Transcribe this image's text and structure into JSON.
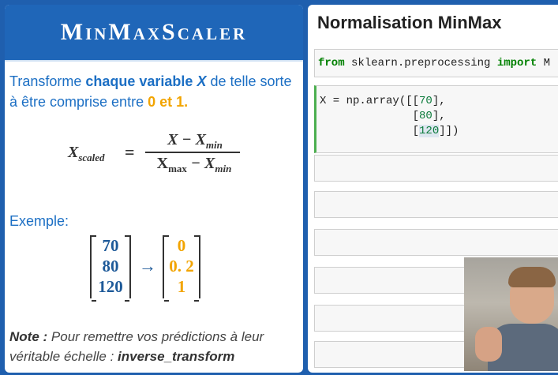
{
  "slide": {
    "banner": "MinMaxScaler",
    "intro": {
      "p1": "Transforme ",
      "b1": "chaque variable ",
      "var": "X",
      "p2": " de telle sorte à être comprise entre ",
      "b2": "0 et 1."
    },
    "formula": {
      "lhs": "X",
      "lhs_sub": "scaled",
      "num_a": "X",
      "num_b": " − X",
      "num_sub": "min",
      "den_a": "X",
      "den_a_sub": "max",
      "den_b": " − X",
      "den_b_sub": "min"
    },
    "example_label": "Exemple:",
    "matrix_in": [
      "70",
      "80",
      "120"
    ],
    "arrow": "→",
    "matrix_out": [
      "0",
      "0. 2",
      "1"
    ],
    "note": {
      "label": "Note :",
      "text": " Pour remettre vos prédictions à leur véritable échelle : ",
      "func": "inverse_transform"
    }
  },
  "notebook": {
    "title": "Normalisation MinMax",
    "cell1": {
      "kw1": "from",
      "mod": " sklearn.preprocessing ",
      "kw2": "import",
      "rest": " M"
    },
    "cell2": {
      "l1a": "X = np.array([[",
      "v1": "70",
      "l1b": "],",
      "l2a": "              [",
      "v2": "80",
      "l2b": "],",
      "l3a": "              [",
      "v3": "120",
      "l3b": "]])"
    }
  },
  "colors": {
    "brand_blue": "#1f66b8",
    "accent_orange": "#f2a400",
    "keyword_green": "#008000"
  }
}
